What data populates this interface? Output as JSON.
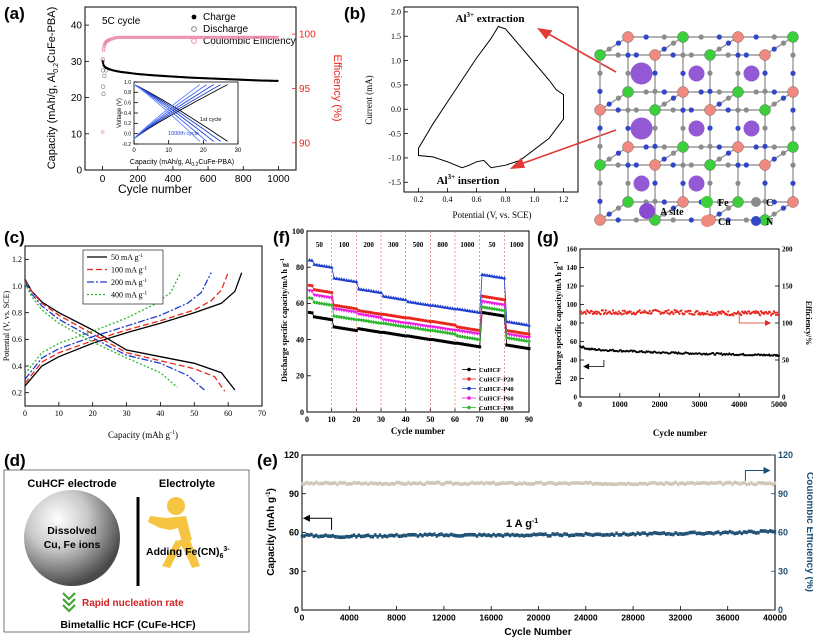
{
  "colors": {
    "black": "#000000",
    "red": "#e8271e",
    "pink": "#ec8ca8",
    "blue": "#1f3fd0",
    "magenta": "#ea1de3",
    "green": "#2fb62f",
    "darkred": "#d42020",
    "beige": "#cfc6b4",
    "navy": "#1d4f73",
    "fe_green": "#3ccf3c",
    "cu_salmon": "#f08a80",
    "c_gray": "#8c8c8c",
    "n_blue": "#3246c8",
    "asite_purple": "#8a4bd0",
    "arrow_red": "#e03b36"
  },
  "chart_data": [
    {
      "panel": "(a)",
      "type": "scatter",
      "annotation": "5C cycle",
      "xlabel": "Cycle number",
      "ylabel": "Capacity (mAh/g, Al0.2CuFe-PBA)",
      "y2label": "Efficiency (%)",
      "xlim": [
        -100,
        1100
      ],
      "ylim": [
        0,
        45
      ],
      "y2lim": [
        87.5,
        102.5
      ],
      "xticks": [
        0,
        200,
        400,
        600,
        800,
        1000
      ],
      "yticks": [
        0,
        10,
        20,
        30,
        40
      ],
      "y2ticks": [
        90,
        95,
        100
      ],
      "legend": [
        "Charge",
        "Discharge",
        "Coulombic Efficiency"
      ],
      "series": [
        {
          "name": "Charge",
          "x": [
            1,
            5,
            10,
            20,
            40,
            60,
            80,
            100,
            150,
            200,
            300,
            400,
            500,
            600,
            700,
            800,
            900,
            1000
          ],
          "y": [
            30,
            29,
            28.6,
            28.2,
            27.8,
            27.5,
            27.3,
            27.1,
            26.8,
            26.5,
            26.1,
            25.8,
            25.5,
            25.3,
            25.1,
            24.9,
            24.7,
            24.6
          ]
        },
        {
          "name": "Discharge",
          "x": [
            1,
            2,
            3,
            5,
            10,
            20
          ],
          "y": [
            30.5,
            27.5,
            23,
            21,
            26,
            27.5
          ]
        },
        {
          "name": "Coulombic Efficiency",
          "x": [
            1,
            2,
            3,
            5,
            10,
            20,
            40,
            60,
            80,
            100,
            150,
            200,
            300,
            400,
            500,
            600,
            700,
            800,
            900,
            1000
          ],
          "y": [
            91,
            96,
            97.5,
            98.5,
            99,
            99.3,
            99.5,
            99.6,
            99.7,
            99.7,
            99.7,
            99.7,
            99.7,
            99.7,
            99.7,
            99.7,
            99.7,
            99.7,
            99.7,
            99.7
          ]
        }
      ],
      "inset": {
        "xlabel": "Capacity (mAh/g, Al0.2CuFe-PBA)",
        "ylabel": "Voltage (V)",
        "xlim": [
          0,
          30
        ],
        "ylim": [
          -0.2,
          1.0
        ],
        "xticks": [
          0,
          10,
          20,
          30
        ],
        "yticks": [
          -0.2,
          0.0,
          0.2,
          0.4,
          0.6,
          0.8,
          1.0
        ],
        "labels": [
          "1st cycle",
          "1000th cycle"
        ]
      }
    },
    {
      "panel": "(b)",
      "type": "line",
      "xlabel": "Potential (V, vs. SCE)",
      "ylabel": "Current (mA)",
      "xlim": [
        0.1,
        1.3
      ],
      "ylim": [
        -1.7,
        2.1
      ],
      "xticks": [
        0.2,
        0.4,
        0.6,
        0.8,
        1.0,
        1.2
      ],
      "yticks": [
        -1.5,
        -1.0,
        -0.5,
        0.0,
        0.5,
        1.0,
        1.5,
        2.0
      ],
      "annotations": [
        "Al3+ extraction",
        "Al3+ insertion"
      ],
      "series": [
        {
          "name": "CV",
          "x": [
            0.2,
            0.3,
            0.4,
            0.5,
            0.6,
            0.7,
            0.75,
            0.8,
            0.9,
            1.0,
            1.1,
            1.15,
            1.2,
            1.2,
            1.1,
            0.9,
            0.8,
            0.7,
            0.65,
            0.6,
            0.55,
            0.5,
            0.4,
            0.3,
            0.2,
            0.2
          ],
          "y": [
            -0.8,
            -0.3,
            0.15,
            0.6,
            1.05,
            1.45,
            1.7,
            1.65,
            1.3,
            0.95,
            0.6,
            0.4,
            0.3,
            -0.2,
            -0.6,
            -1.05,
            -1.15,
            -1.2,
            -1.05,
            -1.08,
            -1.15,
            -1.2,
            -1.08,
            -0.98,
            -0.95,
            -0.8
          ]
        }
      ],
      "structure_legend": [
        {
          "label": "A site"
        },
        {
          "label": "Fe"
        },
        {
          "label": "C"
        },
        {
          "label": "Cu"
        },
        {
          "label": "N"
        }
      ]
    },
    {
      "panel": "(c)",
      "type": "line",
      "xlabel": "Capacity (mAh g-1)",
      "ylabel": "Potential (V, vs. SCE)",
      "xlim": [
        0,
        70
      ],
      "ylim": [
        0.1,
        1.3
      ],
      "xticks": [
        0,
        10,
        20,
        30,
        40,
        50,
        60,
        70
      ],
      "yticks": [
        0.2,
        0.4,
        0.6,
        0.8,
        1.0,
        1.2
      ],
      "series": [
        {
          "name": "50 mA g-1",
          "charge": {
            "x": [
              0,
              5,
              10,
              20,
              30,
              40,
              50,
              58,
              62,
              64
            ],
            "y": [
              0.25,
              0.4,
              0.47,
              0.57,
              0.65,
              0.72,
              0.8,
              0.87,
              0.96,
              1.1
            ]
          },
          "discharge": {
            "x": [
              0,
              2,
              5,
              10,
              20,
              30,
              40,
              50,
              58,
              62
            ],
            "y": [
              1.05,
              0.96,
              0.88,
              0.8,
              0.67,
              0.52,
              0.47,
              0.42,
              0.35,
              0.22
            ]
          }
        },
        {
          "name": "100 mA g-1",
          "charge": {
            "x": [
              0,
              5,
              10,
              20,
              30,
              40,
              50,
              55,
              58,
              60
            ],
            "y": [
              0.27,
              0.43,
              0.5,
              0.59,
              0.67,
              0.74,
              0.82,
              0.89,
              0.97,
              1.1
            ]
          },
          "discharge": {
            "x": [
              0,
              2,
              5,
              10,
              20,
              30,
              40,
              50,
              56,
              59
            ],
            "y": [
              1.04,
              0.96,
              0.87,
              0.78,
              0.64,
              0.5,
              0.44,
              0.38,
              0.32,
              0.21
            ]
          }
        },
        {
          "name": "200 mA g-1",
          "charge": {
            "x": [
              0,
              5,
              10,
              20,
              30,
              40,
              48,
              52,
              55
            ],
            "y": [
              0.3,
              0.46,
              0.53,
              0.62,
              0.7,
              0.78,
              0.87,
              0.95,
              1.1
            ]
          },
          "discharge": {
            "x": [
              0,
              2,
              5,
              10,
              20,
              30,
              40,
              48,
              53
            ],
            "y": [
              1.03,
              0.94,
              0.85,
              0.75,
              0.61,
              0.48,
              0.42,
              0.33,
              0.22
            ]
          }
        },
        {
          "name": "400 mA g-1",
          "charge": {
            "x": [
              0,
              5,
              10,
              20,
              30,
              38,
              43,
              46
            ],
            "y": [
              0.34,
              0.5,
              0.57,
              0.66,
              0.76,
              0.86,
              0.95,
              1.1
            ]
          },
          "discharge": {
            "x": [
              0,
              2,
              5,
              10,
              20,
              30,
              40,
              45
            ],
            "y": [
              1.02,
              0.92,
              0.82,
              0.72,
              0.58,
              0.46,
              0.35,
              0.24
            ]
          }
        }
      ]
    },
    {
      "panel": "(f)",
      "type": "line",
      "xlabel": "Cycle number",
      "ylabel": "Discharge specific capacity/mA h g-1",
      "xlim": [
        0,
        90
      ],
      "ylim": [
        0,
        100
      ],
      "xticks": [
        0,
        10,
        20,
        30,
        40,
        50,
        60,
        70,
        80,
        90
      ],
      "yticks": [
        0,
        20,
        40,
        60,
        80,
        100
      ],
      "rates": [
        "50",
        "100",
        "200",
        "300",
        "500",
        "800",
        "1000",
        "50",
        "1000"
      ],
      "rate_boundaries": [
        10,
        20,
        30,
        40,
        50,
        60,
        70,
        80
      ],
      "series": [
        {
          "name": "CuHCF",
          "segments": [
            53,
            47,
            46,
            44,
            42,
            40,
            38,
            55,
            37
          ]
        },
        {
          "name": "CuHCF-P20",
          "segments": [
            68,
            59,
            56,
            54,
            52,
            50,
            47,
            64,
            45
          ]
        },
        {
          "name": "CuHCF-P40",
          "segments": [
            82,
            74,
            68,
            64,
            61,
            59,
            57,
            76,
            50
          ]
        },
        {
          "name": "CuHCF-P60",
          "segments": [
            65,
            57,
            54,
            51,
            49,
            47,
            45,
            61,
            43
          ]
        },
        {
          "name": "CuHCF-P80",
          "segments": [
            61,
            53,
            51,
            49,
            47,
            45,
            42,
            58,
            41
          ]
        }
      ]
    },
    {
      "panel": "(g)",
      "type": "scatter",
      "xlabel": "Cycle number",
      "ylabel": "Discharge specific capacity/mA h g-1",
      "y2label": "Efficiency/%",
      "xlim": [
        0,
        5000
      ],
      "ylim": [
        0,
        160
      ],
      "y2lim": [
        0,
        200
      ],
      "xticks": [
        0,
        1000,
        2000,
        3000,
        4000,
        5000
      ],
      "yticks": [
        0,
        20,
        40,
        60,
        80,
        100,
        120,
        140,
        160
      ],
      "y2ticks": [
        0,
        50,
        100,
        150,
        200
      ],
      "series": [
        {
          "name": "Capacity",
          "x": [
            0,
            200,
            500,
            1000,
            2000,
            3000,
            4000,
            5000
          ],
          "y": [
            55,
            52,
            51,
            50,
            48,
            47,
            46,
            45
          ]
        },
        {
          "name": "Efficiency",
          "x": [
            0,
            1000,
            2000,
            3000,
            4000,
            5000
          ],
          "y": [
            115,
            114,
            115,
            114,
            113,
            113
          ]
        }
      ]
    },
    {
      "panel": "(d)",
      "type": "diagram",
      "labels": [
        "CuHCF electrode",
        "Electrolyte",
        "Dissolved",
        "Cu, Fe ions",
        "Adding Fe(CN)6",
        "3-",
        "Rapid nucleation rate",
        "Bimetallic HCF (CuFe-HCF)"
      ]
    },
    {
      "panel": "(e)",
      "type": "scatter",
      "annotation": "1 A g-1",
      "xlabel": "Cycle Number",
      "ylabel": "Capacity (mAh g-1)",
      "y2label": "Coulombic Efficiency (%)",
      "xlim": [
        0,
        40000
      ],
      "ylim": [
        0,
        120
      ],
      "y2lim": [
        0,
        120
      ],
      "xticks": [
        0,
        4000,
        8000,
        12000,
        16000,
        20000,
        24000,
        28000,
        32000,
        36000,
        40000
      ],
      "yticks": [
        0,
        30,
        60,
        90,
        120
      ],
      "y2ticks": [
        0,
        30,
        60,
        90,
        120
      ],
      "series": [
        {
          "name": "Coulombic Efficiency",
          "x": [
            0,
            10000,
            20000,
            30000,
            40000
          ],
          "y": [
            98,
            98,
            98,
            98,
            98
          ]
        },
        {
          "name": "Capacity",
          "x": [
            0,
            3000,
            10000,
            20000,
            30000,
            37000,
            40000
          ],
          "y": [
            58,
            57,
            58,
            58,
            59,
            60,
            61
          ]
        }
      ]
    }
  ],
  "panels": {
    "a": {
      "label": "(a)",
      "annotation": "5C cycle",
      "legend": [
        "Charge",
        "Discharge",
        "Coulombic Efficiency"
      ],
      "xlabel": "Cycle number",
      "ylabel": "Capacity (mAh/g, Al",
      "ylabel_sub": "0.2",
      "ylabel_end": "CuFe-PBA)",
      "y2label": "Efficiency (%)",
      "xticks": [
        "0",
        "200",
        "400",
        "600",
        "800",
        "1000"
      ],
      "yticks": [
        "0",
        "10",
        "20",
        "30",
        "40"
      ],
      "y2ticks": [
        "90",
        "95",
        "100"
      ],
      "inset": {
        "xlabel": "Capacity (mAh/g, Al",
        "xlabel_sub": "0.2",
        "xlabel_end": "CuFe-PBA)",
        "ylabel": "Voltage (V)",
        "xticks": [
          "0",
          "10",
          "20",
          "30"
        ],
        "yticks": [
          "-0.2",
          "0.0",
          "0.2",
          "0.4",
          "0.6",
          "0.8",
          "1.0"
        ],
        "first": "1st cycle",
        "thousandth": "1000th cycle"
      }
    },
    "b": {
      "label": "(b)",
      "xlabel": "Potential (V, vs. SCE)",
      "ylabel": "Current (mA)",
      "xticks": [
        "0.2",
        "0.4",
        "0.6",
        "0.8",
        "1.0",
        "1.2"
      ],
      "yticks": [
        "-1.5",
        "-1.0",
        "-0.5",
        "0.0",
        "0.5",
        "1.0",
        "1.5",
        "2.0"
      ],
      "extraction": "Al",
      "extraction_sup": "3+",
      "extraction_end": " extraction",
      "insertion": "Al",
      "insertion_sup": "3+",
      "insertion_end": " insertion",
      "legend": {
        "asite": "A site",
        "fe": "Fe",
        "c": "C",
        "cu": "Cu",
        "n": "N"
      }
    },
    "c": {
      "label": "(c)",
      "xlabel": "Capacity (mAh g",
      "xlabel_sup": "-1",
      "xlabel_end": ")",
      "ylabel": "Potential (V, vs. SCE)",
      "xticks": [
        "0",
        "10",
        "20",
        "30",
        "40",
        "50",
        "60",
        "70"
      ],
      "yticks": [
        "0.2",
        "0.4",
        "0.6",
        "0.8",
        "1.0",
        "1.2"
      ],
      "legend": [
        {
          "t": "50 mA g",
          "s": "-1"
        },
        {
          "t": "100 mA g",
          "s": "-1"
        },
        {
          "t": "200 mA g",
          "s": "-1"
        },
        {
          "t": "400 mA g",
          "s": "-1"
        }
      ]
    },
    "f": {
      "label": "(f)",
      "xlabel": "Cycle number",
      "ylabel": "Discharge specific capacity/mA h g",
      "ylabel_sup": "-1",
      "xticks": [
        "0",
        "10",
        "20",
        "30",
        "40",
        "50",
        "60",
        "70",
        "80",
        "90"
      ],
      "yticks": [
        "0",
        "20",
        "40",
        "60",
        "80",
        "100"
      ],
      "rates": [
        "50",
        "100",
        "200",
        "300",
        "500",
        "800",
        "1000",
        "50",
        "1000"
      ],
      "legend": [
        "CuHCF",
        "CuHCF-P20",
        "CuHCF-P40",
        "CuHCF-P60",
        "CuHCF-P80"
      ]
    },
    "g": {
      "label": "(g)",
      "xlabel": "Cycle number",
      "ylabel": "Discharge specific capacity/mA h g",
      "ylabel_sup": "-1",
      "y2label": "Efficiency/%",
      "xticks": [
        "0",
        "1000",
        "2000",
        "3000",
        "4000",
        "5000"
      ],
      "yticks": [
        "0",
        "20",
        "40",
        "60",
        "80",
        "100",
        "120",
        "140",
        "160"
      ],
      "y2ticks": [
        "0",
        "50",
        "100",
        "150",
        "200"
      ]
    },
    "d": {
      "label": "(d)",
      "electrode": "CuHCF electrode",
      "electrolyte": "Electrolyte",
      "dissolved": "Dissolved",
      "ions": "Cu, Fe ions",
      "adding": "Adding Fe(CN)",
      "adding_sub": "6",
      "adding_sup": "3-",
      "rapid": "Rapid nucleation rate",
      "bimetallic": "Bimetallic HCF (CuFe-HCF)"
    },
    "e": {
      "label": "(e)",
      "annotation": "1 A g",
      "annotation_sup": "-1",
      "xlabel": "Cycle Number",
      "ylabel": "Capacity (mAh g",
      "ylabel_sup": "-1",
      "ylabel_end": ")",
      "y2label": "Coulombic Efficiency (%)",
      "xticks": [
        "0",
        "4000",
        "8000",
        "12000",
        "16000",
        "20000",
        "24000",
        "28000",
        "32000",
        "36000",
        "40000"
      ],
      "yticks": [
        "0",
        "30",
        "60",
        "90",
        "120"
      ],
      "y2ticks": [
        "0",
        "30",
        "60",
        "90",
        "120"
      ]
    }
  }
}
